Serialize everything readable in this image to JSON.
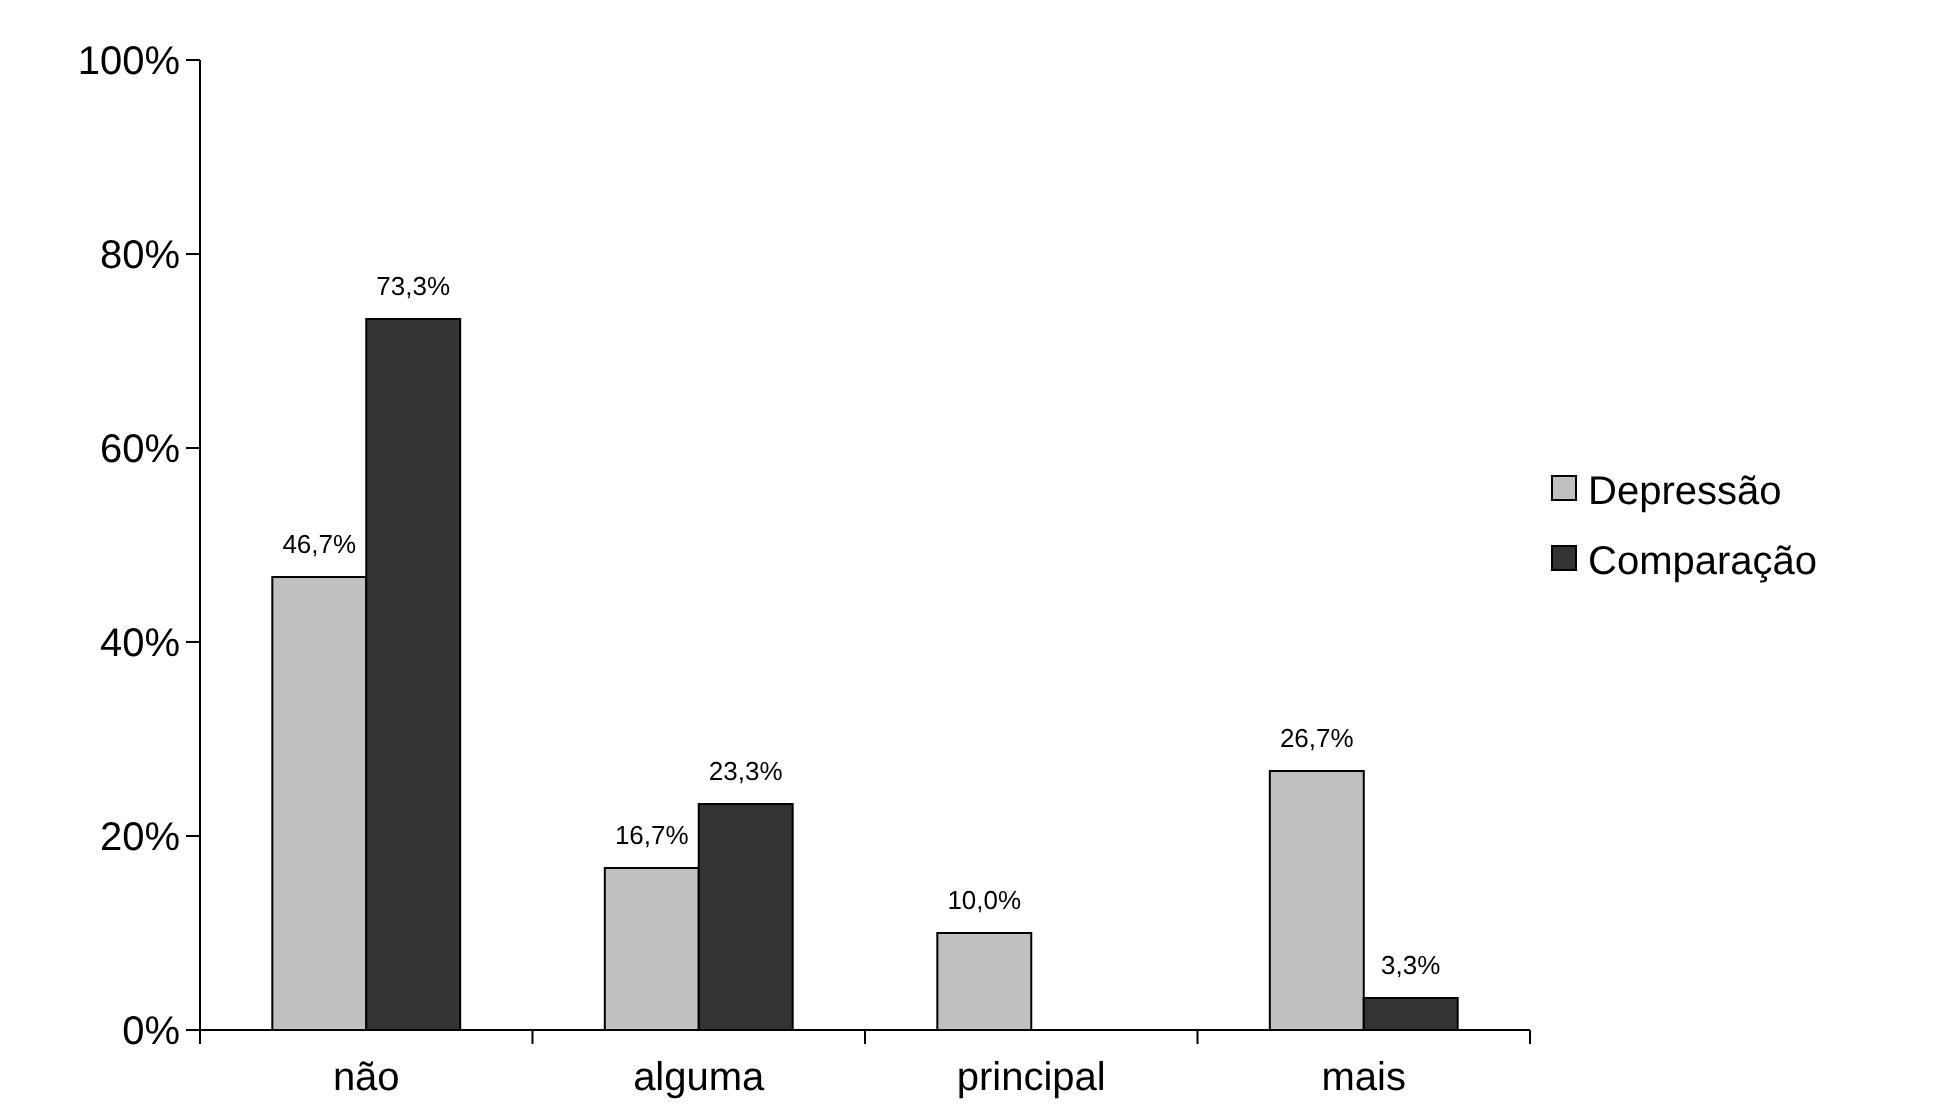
{
  "chart_data": {
    "type": "bar",
    "categories": [
      "não",
      "alguma",
      "principal",
      "mais"
    ],
    "series": [
      {
        "name": "Depressão",
        "color": "#c0c0c0",
        "values": [
          46.7,
          16.7,
          10.0,
          26.7
        ],
        "value_labels": [
          "46,7%",
          "16,7%",
          "10,0%",
          "26,7%"
        ]
      },
      {
        "name": "Comparação",
        "color": "#333333",
        "values": [
          73.3,
          23.3,
          null,
          3.3
        ],
        "value_labels": [
          "73,3%",
          "23,3%",
          null,
          "3,3%"
        ]
      }
    ],
    "ylim": [
      0,
      100
    ],
    "yticks": [
      {
        "value": 0,
        "label": "0%"
      },
      {
        "value": 20,
        "label": "20%"
      },
      {
        "value": 40,
        "label": "40%"
      },
      {
        "value": 60,
        "label": "60%"
      },
      {
        "value": 80,
        "label": "80%"
      },
      {
        "value": 100,
        "label": "100%"
      }
    ],
    "grid": false,
    "legend": "right"
  }
}
